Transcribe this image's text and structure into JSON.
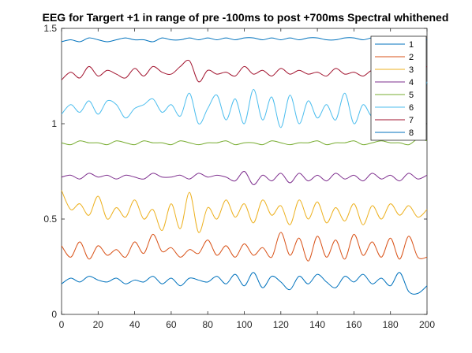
{
  "chart_data": {
    "type": "line",
    "title": "EEG for Targert +1 in range of pre -100ms to post +700ms Spectral whithened",
    "xlabel": "",
    "ylabel": "",
    "xlim": [
      0,
      200
    ],
    "ylim": [
      0,
      1.5
    ],
    "xticks": [
      "0",
      "20",
      "40",
      "60",
      "80",
      "100",
      "120",
      "140",
      "160",
      "180",
      "200"
    ],
    "yticks": [
      "0",
      "0.5",
      "1",
      "1.5"
    ],
    "grid": false,
    "legend_position": "top-right",
    "series": [
      {
        "name": "1",
        "color": "#0072BD",
        "x": [
          0,
          5,
          10,
          15,
          20,
          25,
          30,
          35,
          40,
          45,
          50,
          55,
          60,
          65,
          70,
          75,
          80,
          85,
          90,
          95,
          100,
          105,
          110,
          115,
          120,
          125,
          130,
          135,
          140,
          145,
          150,
          155,
          160,
          165,
          170,
          175,
          180,
          185,
          190,
          195,
          200
        ],
        "values": [
          0.16,
          0.19,
          0.17,
          0.2,
          0.18,
          0.17,
          0.19,
          0.16,
          0.18,
          0.17,
          0.2,
          0.16,
          0.19,
          0.15,
          0.19,
          0.18,
          0.17,
          0.2,
          0.16,
          0.21,
          0.15,
          0.22,
          0.14,
          0.2,
          0.17,
          0.13,
          0.2,
          0.16,
          0.21,
          0.17,
          0.14,
          0.2,
          0.17,
          0.21,
          0.16,
          0.19,
          0.15,
          0.22,
          0.12,
          0.11,
          0.15
        ]
      },
      {
        "name": "2",
        "color": "#D95319",
        "x": [
          0,
          5,
          10,
          15,
          20,
          25,
          30,
          35,
          40,
          45,
          50,
          55,
          60,
          65,
          70,
          75,
          80,
          85,
          90,
          95,
          100,
          105,
          110,
          115,
          120,
          125,
          130,
          135,
          140,
          145,
          150,
          155,
          160,
          165,
          170,
          175,
          180,
          185,
          190,
          195,
          200
        ],
        "values": [
          0.36,
          0.3,
          0.38,
          0.29,
          0.36,
          0.31,
          0.34,
          0.3,
          0.38,
          0.32,
          0.42,
          0.33,
          0.35,
          0.3,
          0.34,
          0.32,
          0.39,
          0.31,
          0.36,
          0.3,
          0.37,
          0.31,
          0.35,
          0.3,
          0.43,
          0.31,
          0.4,
          0.28,
          0.41,
          0.3,
          0.39,
          0.29,
          0.42,
          0.31,
          0.38,
          0.3,
          0.4,
          0.29,
          0.41,
          0.3,
          0.3
        ]
      },
      {
        "name": "3",
        "color": "#EDB120",
        "x": [
          0,
          5,
          10,
          15,
          20,
          25,
          30,
          35,
          40,
          45,
          50,
          55,
          60,
          65,
          70,
          75,
          80,
          85,
          90,
          95,
          100,
          105,
          110,
          115,
          120,
          125,
          130,
          135,
          140,
          145,
          150,
          155,
          160,
          165,
          170,
          175,
          180,
          185,
          190,
          195,
          200
        ],
        "values": [
          0.65,
          0.55,
          0.58,
          0.52,
          0.62,
          0.5,
          0.56,
          0.51,
          0.6,
          0.5,
          0.55,
          0.44,
          0.58,
          0.45,
          0.64,
          0.43,
          0.56,
          0.5,
          0.6,
          0.51,
          0.58,
          0.48,
          0.6,
          0.52,
          0.57,
          0.47,
          0.6,
          0.5,
          0.59,
          0.48,
          0.56,
          0.49,
          0.58,
          0.47,
          0.57,
          0.5,
          0.58,
          0.52,
          0.57,
          0.51,
          0.55
        ]
      },
      {
        "name": "4",
        "color": "#7E2F8E",
        "x": [
          0,
          5,
          10,
          15,
          20,
          25,
          30,
          35,
          40,
          45,
          50,
          55,
          60,
          65,
          70,
          75,
          80,
          85,
          90,
          95,
          100,
          105,
          110,
          115,
          120,
          125,
          130,
          135,
          140,
          145,
          150,
          155,
          160,
          165,
          170,
          175,
          180,
          185,
          190,
          195,
          200
        ],
        "values": [
          0.72,
          0.73,
          0.71,
          0.74,
          0.72,
          0.73,
          0.71,
          0.73,
          0.72,
          0.71,
          0.74,
          0.72,
          0.72,
          0.73,
          0.71,
          0.74,
          0.72,
          0.73,
          0.72,
          0.7,
          0.75,
          0.68,
          0.73,
          0.7,
          0.74,
          0.69,
          0.74,
          0.7,
          0.73,
          0.7,
          0.74,
          0.71,
          0.73,
          0.7,
          0.74,
          0.71,
          0.73,
          0.7,
          0.74,
          0.71,
          0.73
        ]
      },
      {
        "name": "5",
        "color": "#77AC30",
        "x": [
          0,
          5,
          10,
          15,
          20,
          25,
          30,
          35,
          40,
          45,
          50,
          55,
          60,
          65,
          70,
          75,
          80,
          85,
          90,
          95,
          100,
          105,
          110,
          115,
          120,
          125,
          130,
          135,
          140,
          145,
          150,
          155,
          160,
          165,
          170,
          175,
          180,
          185,
          190,
          195,
          200
        ],
        "values": [
          0.9,
          0.89,
          0.91,
          0.9,
          0.9,
          0.89,
          0.91,
          0.9,
          0.89,
          0.91,
          0.9,
          0.9,
          0.89,
          0.91,
          0.9,
          0.89,
          0.9,
          0.9,
          0.91,
          0.89,
          0.9,
          0.9,
          0.89,
          0.91,
          0.9,
          0.89,
          0.9,
          0.9,
          0.91,
          0.89,
          0.9,
          0.9,
          0.91,
          0.89,
          0.9,
          0.91,
          0.9,
          0.9,
          0.89,
          0.92,
          0.91
        ]
      },
      {
        "name": "6",
        "color": "#4DBEEE",
        "x": [
          0,
          5,
          10,
          15,
          20,
          25,
          30,
          35,
          40,
          45,
          50,
          55,
          60,
          65,
          70,
          75,
          80,
          85,
          90,
          95,
          100,
          105,
          110,
          115,
          120,
          125,
          130,
          135,
          140,
          145,
          150,
          155,
          160,
          165,
          170,
          175,
          180,
          185,
          190,
          195,
          200
        ],
        "values": [
          1.05,
          1.1,
          1.06,
          1.12,
          1.05,
          1.12,
          1.1,
          1.03,
          1.08,
          1.1,
          1.13,
          1.06,
          1.1,
          1.04,
          1.16,
          1.0,
          1.08,
          1.15,
          1.02,
          1.13,
          1.0,
          1.18,
          1.02,
          1.14,
          0.98,
          1.15,
          1.0,
          1.12,
          1.03,
          1.1,
          1.02,
          1.16,
          1.0,
          1.1,
          1.04,
          1.12,
          0.96,
          1.14,
          1.0,
          1.05,
          1.22
        ]
      },
      {
        "name": "7",
        "color": "#A2142F",
        "x": [
          0,
          5,
          10,
          15,
          20,
          25,
          30,
          35,
          40,
          45,
          50,
          55,
          60,
          65,
          70,
          75,
          80,
          85,
          90,
          95,
          100,
          105,
          110,
          115,
          120,
          125,
          130,
          135,
          140,
          145,
          150,
          155,
          160,
          165,
          170,
          175,
          180,
          185,
          190,
          195,
          200
        ],
        "values": [
          1.23,
          1.27,
          1.24,
          1.3,
          1.25,
          1.28,
          1.26,
          1.24,
          1.29,
          1.25,
          1.3,
          1.27,
          1.26,
          1.3,
          1.33,
          1.22,
          1.28,
          1.26,
          1.27,
          1.25,
          1.3,
          1.26,
          1.28,
          1.25,
          1.29,
          1.26,
          1.28,
          1.26,
          1.27,
          1.25,
          1.29,
          1.26,
          1.27,
          1.25,
          1.28,
          1.26,
          1.26,
          1.29,
          1.24,
          1.28,
          1.3
        ]
      },
      {
        "name": "8",
        "color": "#0072BD",
        "x": [
          0,
          5,
          10,
          15,
          20,
          25,
          30,
          35,
          40,
          45,
          50,
          55,
          60,
          65,
          70,
          75,
          80,
          85,
          90,
          95,
          100,
          105,
          110,
          115,
          120,
          125,
          130,
          135,
          140,
          145,
          150,
          155,
          160,
          165,
          170,
          175,
          180,
          185,
          190,
          195,
          200
        ],
        "values": [
          1.43,
          1.44,
          1.43,
          1.45,
          1.44,
          1.43,
          1.44,
          1.45,
          1.44,
          1.44,
          1.43,
          1.45,
          1.44,
          1.44,
          1.45,
          1.44,
          1.45,
          1.44,
          1.45,
          1.44,
          1.45,
          1.45,
          1.44,
          1.45,
          1.44,
          1.45,
          1.44,
          1.45,
          1.45,
          1.44,
          1.44,
          1.45,
          1.45,
          1.44,
          1.45,
          1.44,
          1.45,
          1.44,
          1.45,
          1.44,
          1.44
        ]
      }
    ]
  }
}
